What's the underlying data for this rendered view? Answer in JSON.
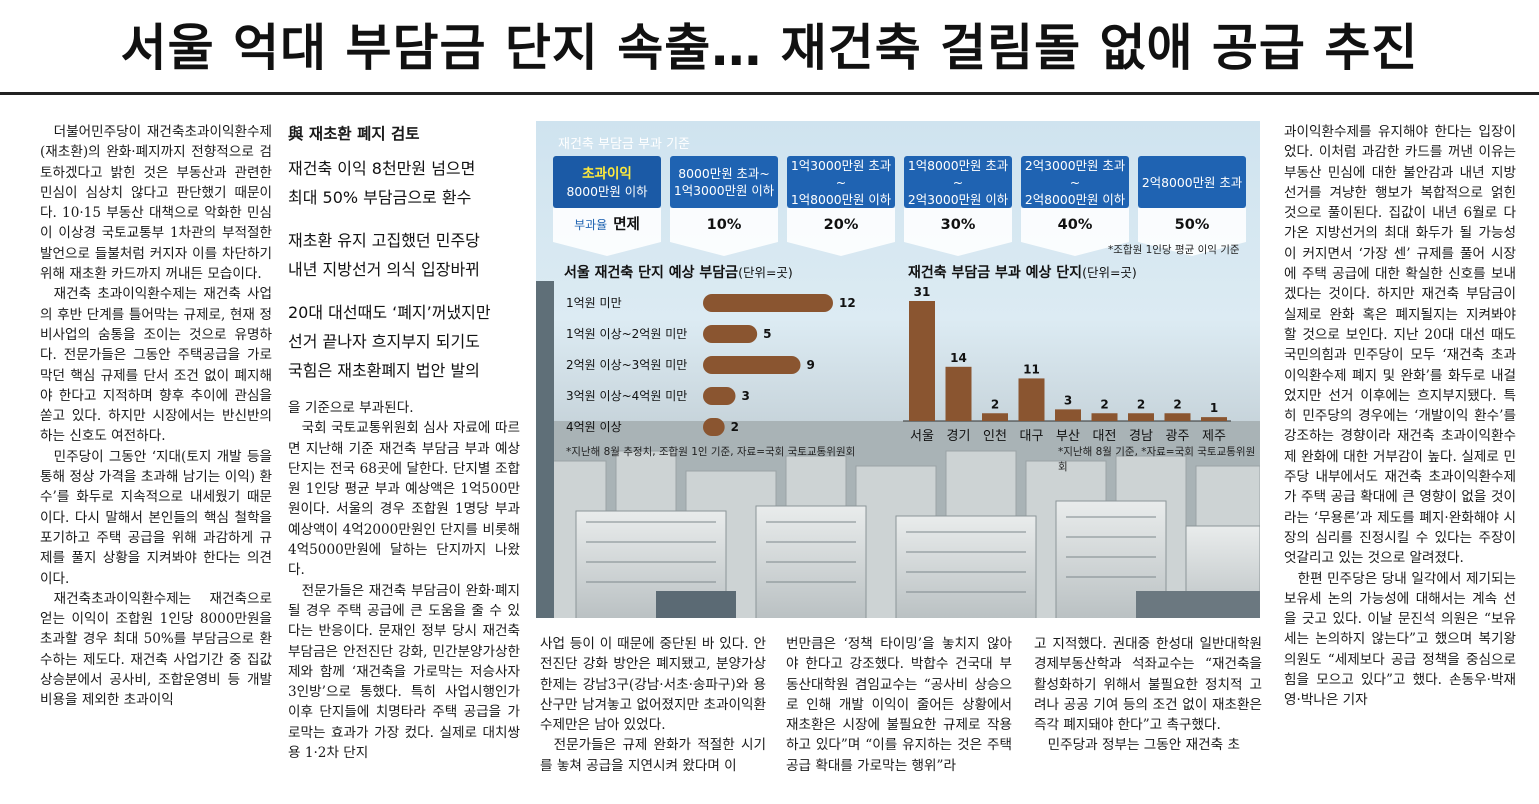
{
  "headline": "서울 억대 부담금 단지 속출… 재건축 걸림돌 없애 공급 추진",
  "col1": [
    "더불어민주당이 재건축초과이익환수제(재초환)의 완화·폐지까지 전향적으로 검토하겠다고 밝힌 것은 부동산과 관련한 민심이 심상치 않다고 판단했기 때문이다. 10·15 부동산 대책으로 악화한 민심이 이상경 국토교통부 1차관의 부적절한 발언으로 들불처럼 커지자 이를 차단하기 위해 재초환 카드까지 꺼내든 모습이다.",
    "재건축 초과이익환수제는 재건축 사업의 후반 단계를 틀어막는 규제로, 현재 정비사업의 숨통을 조이는 것으로 유명하다. 전문가들은 그동안 주택공급을 가로막던 핵심 규제를 단서 조건 없이 폐지해야 한다고 지적하며 향후 추이에 관심을 쏟고 있다. 하지만 시장에서는 반신반의하는 신호도 여전하다.",
    "민주당이 그동안 ‘지대(토지 개발 등을 통해 정상 가격을 초과해 남기는 이익) 환수’를 화두로 지속적으로 내세웠기 때문이다. 다시 말해서 본인들의 핵심 철학을 포기하고 주택 공급을 위해 과감하게 규제를 풀지 상황을 지켜봐야 한다는 의견이다.",
    "재건축초과이익환수제는 재건축으로 얻는 이익이 조합원 1인당 8000만원을 초과할 경우 최대 50%를 부담금으로 환수하는 제도다. 재건축 사업기간 중 집값 상승분에서 공사비, 조합운영비 등 개발비용을 제외한 초과이익"
  ],
  "subheads": {
    "first": "與 재초환 폐지 검토",
    "lines": [
      "재건축 이익 8천만원 넘으면",
      "최대 50% 부담금으로 환수",
      "재초환 유지 고집했던 민주당",
      "내년 지방선거 의식 입장바뀌",
      "20대 대선때도 ‘폐지’꺼냈지만",
      "선거 끝나자 흐지부지 되기도",
      "국힘은 재초환폐지 법안 발의"
    ]
  },
  "col2": [
    "을 기준으로 부과된다.",
    "국회 국토교통위원회 심사 자료에 따르면 지난해 기준 재건축 부담금 부과 예상 단지는 전국 68곳에 달한다. 단지별 조합원 1인당 평균 부과 예상액은 1억500만원이다. 서울의 경우 조합원 1명당 부과 예상액이 4억2000만원인 단지를 비롯해 4억5000만원에 달하는 단지까지 나왔다.",
    "전문가들은 재건축 부담금이 완화·폐지될 경우 주택 공급에 큰 도움을 줄 수 있다는 반응이다. 문재인 정부 당시 재건축 부담금은 안전진단 강화, 민간분양가상한제와 함께 ‘재건축을 가로막는 저승사자 3인방’으로 통했다. 특히 사업시행인가 이후 단지들에 치명타라 주택 공급을 가로막는 효과가 가장 컸다. 실제로 대치쌍용 1·2차 단지"
  ],
  "col3": [
    "사업 등이 이 때문에 중단된 바 있다. 안전진단 강화 방안은 폐지됐고, 분양가상한제는 강남3구(강남·서초·송파구)와 용산구만 남겨놓고 없어졌지만 초과이익환수제만은 남아 있었다.",
    "전문가들은 규제 완화가 적절한 시기를 놓쳐 공급을 지연시켜 왔다며 이"
  ],
  "col4": [
    "번만큼은 ‘정책 타이밍’을 놓치지 않아야 한다고 강조했다. 박합수 건국대 부동산대학원 겸임교수는 “공사비 상승으로 인해 개발 이익이 줄어든 상황에서 재초환은 시장에 불필요한 규제로 작용하고 있다”며 “이를 유지하는 것은 주택 공급 확대를 가로막는 행위”라"
  ],
  "col5": [
    "고 지적했다. 권대중 한성대 일반대학원 경제부동산학과 석좌교수는 “재건축을 활성화하기 위해서 불필요한 정치적 고려나 공공 기여 등의 조건 없이 재초환은 즉각 폐지돼야 한다”고 촉구했다.",
    "민주당과 정부는 그동안 재건축 초"
  ],
  "col6": [
    "과이익환수제를 유지해야 한다는 입장이었다. 이처럼 과감한 카드를 꺼낸 이유는 부동산 민심에 대한 불안감과 내년 지방선거를 겨냥한 행보가 복합적으로 얽힌 것으로 풀이된다. 집값이 내년 6월로 다가온 지방선거의 최대 화두가 될 가능성이 커지면서 ‘가장 센’ 규제를 풀어 시장에 주택 공급에 대한 확실한 신호를 보내겠다는 것이다. 하지만 재건축 부담금이 실제로 완화 혹은 폐지될지는 지켜봐야 할 것으로 보인다. 지난 20대 대선 때도 국민의힘과 민주당이 모두 ‘재건축 초과이익환수제 폐지 및 완화’를 화두로 내걸었지만 선거 이후에는 흐지부지됐다. 특히 민주당의 경우에는 ‘개발이익 환수’를 강조하는 경향이라 재건축 초과이익환수제 완화에 대한 거부감이 높다. 실제로 민주당 내부에서도 재건축 초과이익환수제가 주택 공급 확대에 큰 영향이 없을 것이라는 ‘무용론’과 제도를 폐지·완화해야 시장의 심리를 진정시킬 수 있다는 주장이 엇갈리고 있는 것으로 알려졌다.",
    "한편 민주당은 당내 일각에서 제기되는 보유세 논의 가능성에 대해서는 계속 선을 긋고 있다. 이날 문진석 의원은 “보유세는 논의하지 않는다”고 했으며 복기왕 의원도 “세제보다 공급 정책을 중심으로 힘을 모으고 있다”고 했다. 손동우·박재영·박나은 기자"
  ],
  "graphic": {
    "title": "재건축 부담금 부과 기준",
    "brackets": [
      {
        "top": "초과이익",
        "bottom": "8000만원 이하",
        "rate_label": "부과율",
        "rate": "면제"
      },
      {
        "top": "8000만원 초과~",
        "bottom": "1억3000만원 이하",
        "rate": "10%"
      },
      {
        "top": "1억3000만원 초과~",
        "bottom": "1억8000만원 이하",
        "rate": "20%"
      },
      {
        "top": "1억8000만원 초과~",
        "bottom": "2억3000만원 이하",
        "rate": "30%"
      },
      {
        "top": "2억3000만원 초과~",
        "bottom": "2억8000만원 이하",
        "rate": "40%"
      },
      {
        "top": "2억8000만원 초과",
        "bottom": "",
        "rate": "50%"
      }
    ],
    "bracket_note": "*조합원 1인당 평균 이익 기준",
    "left_note": "*지난해 8월 추정치, 조합원 1인 기준, 자료=국회 국토교통위원회",
    "right_note": "*지난해 8월 기준, *자료=국회 국토교통위원회"
  },
  "chart_data": [
    {
      "type": "bar",
      "orientation": "horizontal",
      "title": "서울 재건축 단지 예상 부담금",
      "unit": "(단위=곳)",
      "categories": [
        "1억원 미만",
        "1억원 이상~2억원 미만",
        "2억원 이상~3억원 미만",
        "3억원 이상~4억원 미만",
        "4억원 이상"
      ],
      "values": [
        12,
        5,
        9,
        3,
        2
      ],
      "color": "#8a5530"
    },
    {
      "type": "bar",
      "orientation": "vertical",
      "title": "재건축 부담금 부과 예상 단지",
      "unit": "(단위=곳)",
      "categories": [
        "서울",
        "경기",
        "인천",
        "대구",
        "부산",
        "대전",
        "경남",
        "광주",
        "제주"
      ],
      "values": [
        31,
        14,
        2,
        11,
        3,
        2,
        2,
        2,
        1
      ],
      "color": "#8a5530"
    }
  ]
}
